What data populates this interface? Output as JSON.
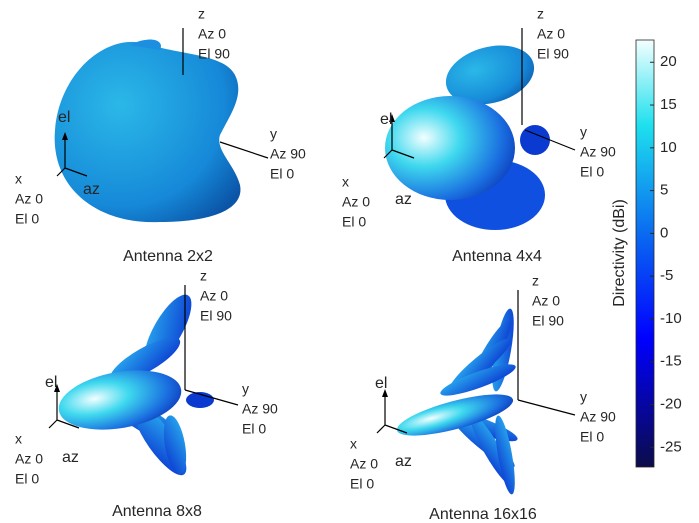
{
  "panels": [
    {
      "title": "Antenna 2x2",
      "z_label": [
        "z",
        "Az 0",
        "El 90"
      ],
      "y_label": [
        "y",
        "Az 90",
        "El 0"
      ],
      "x_label": [
        "x",
        "Az 0",
        "El 0"
      ],
      "el": "el",
      "az": "az"
    },
    {
      "title": "Antenna 4x4",
      "z_label": [
        "z",
        "Az 0",
        "El 90"
      ],
      "y_label": [
        "y",
        "Az 90",
        "El 0"
      ],
      "x_label": [
        "x",
        "Az 0",
        "El 0"
      ],
      "el": "el",
      "az": "az"
    },
    {
      "title": "Antenna 8x8",
      "z_label": [
        "z",
        "Az 0",
        "El 90"
      ],
      "y_label": [
        "y",
        "Az 90",
        "El 0"
      ],
      "x_label": [
        "x",
        "Az 0",
        "El 0"
      ],
      "el": "el",
      "az": "az"
    },
    {
      "title": "Antenna 16x16",
      "z_label": [
        "z",
        "Az 0",
        "El 90"
      ],
      "y_label": [
        "y",
        "Az 90",
        "El 0"
      ],
      "x_label": [
        "x",
        "Az 0",
        "El 0"
      ],
      "el": "el",
      "az": "az"
    }
  ],
  "colorbar": {
    "label": "Directivity (dBi)",
    "lim": [
      -27.3,
      22.6
    ],
    "ticks": [
      20,
      15,
      10,
      5,
      0,
      -5,
      -10,
      -15,
      -20,
      -25
    ]
  }
}
